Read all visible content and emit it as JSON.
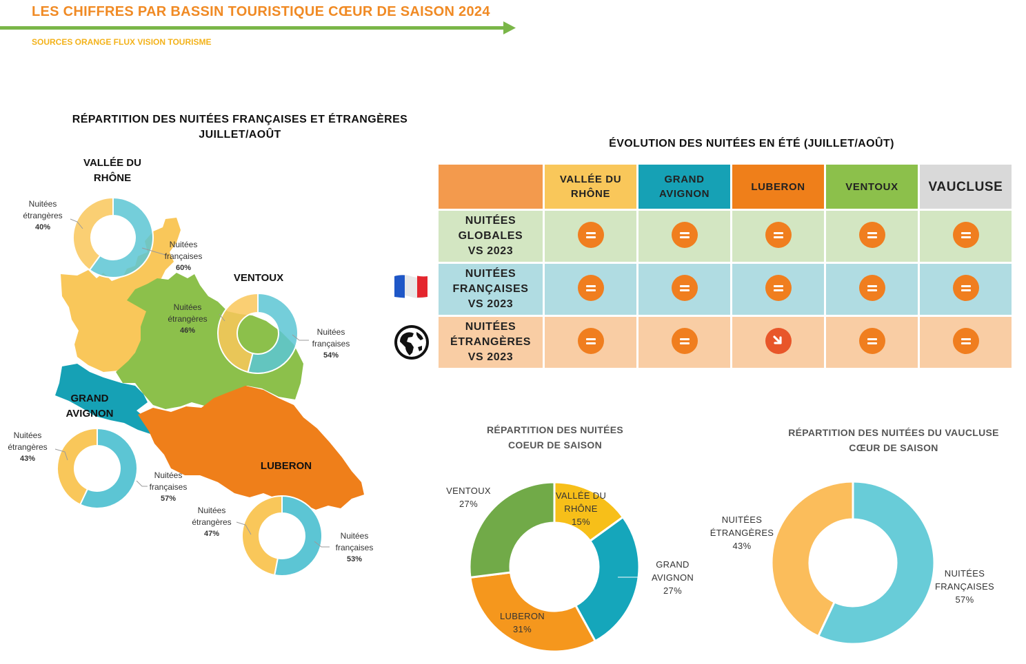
{
  "header": {
    "title": "LES CHIFFRES PAR BASSIN TOURISTIQUE CŒUR DE SAISON 2024",
    "source": "SOURCES ORANGE FLUX VISION TOURISME",
    "accent_color": "#f08a24",
    "line_color": "#7ab648",
    "source_color": "#f3b21a"
  },
  "map_section": {
    "title_line1": "RÉPARTITION DES NUITÉES FRANÇAISES ET ÉTRANGÈRES",
    "title_line2": "JUILLET/AOÛT",
    "regions": [
      {
        "id": "vallee",
        "name_line1": "VALLÉE DU",
        "name_line2": "RHÔNE",
        "color": "#f9c75a",
        "etr_label": [
          "Nuitées",
          "étrangères"
        ],
        "etr_pct": "40%",
        "fr_label": [
          "Nuitées",
          "françaises"
        ],
        "fr_pct": "60%"
      },
      {
        "id": "ventoux",
        "name_line1": "VENTOUX",
        "name_line2": "",
        "color": "#8cc04b",
        "etr_label": [
          "Nuitées",
          "étrangères"
        ],
        "etr_pct": "46%",
        "fr_label": [
          "Nuitées",
          "françaises"
        ],
        "fr_pct": "54%"
      },
      {
        "id": "avignon",
        "name_line1": "GRAND",
        "name_line2": "AVIGNON",
        "color": "#16a1b5",
        "etr_label": [
          "Nuitées",
          "étrangères"
        ],
        "etr_pct": "43%",
        "fr_label": [
          "Nuitées",
          "françaises"
        ],
        "fr_pct": "57%"
      },
      {
        "id": "luberon",
        "name_line1": "LUBERON",
        "name_line2": "",
        "color": "#ef7f1a",
        "etr_label": [
          "Nuitées",
          "étrangères"
        ],
        "etr_pct": "47%",
        "fr_label": [
          "Nuitées",
          "françaises"
        ],
        "fr_pct": "53%"
      }
    ]
  },
  "evolution": {
    "title": "ÉVOLUTION DES NUITÉES EN ÉTÉ (JUILLET/AOÛT)",
    "columns": [
      {
        "label_line1": "VALLÉE DU",
        "label_line2": "RHÔNE",
        "bg": "#f9c75a",
        "fg": "#222222"
      },
      {
        "label_line1": "GRAND",
        "label_line2": "AVIGNON",
        "bg": "#16a1b5",
        "fg": "#222222"
      },
      {
        "label_line1": "LUBERON",
        "label_line2": "",
        "bg": "#ef7f1a",
        "fg": "#222222"
      },
      {
        "label_line1": "VENTOUX",
        "label_line2": "",
        "bg": "#8cc04b",
        "fg": "#222222"
      },
      {
        "label_line1": "VAUCLUSE",
        "label_line2": "",
        "bg": "#d9d9d9",
        "fg": "#222222"
      }
    ],
    "corner_color": "#f39a4d",
    "rows": [
      {
        "label": [
          "NUITÉES",
          "GLOBALES",
          "VS 2023"
        ],
        "bg": "#d3e6c2",
        "icon": "",
        "values": [
          "=",
          "=",
          "=",
          "=",
          "="
        ]
      },
      {
        "label": [
          "NUITÉES",
          "FRANÇAISES",
          "VS 2023"
        ],
        "bg": "#b0dce2",
        "icon": "french-flag-icon",
        "values": [
          "=",
          "=",
          "=",
          "=",
          "="
        ]
      },
      {
        "label": [
          "NUITÉES",
          "ÉTRANGÈRES",
          "VS 2023"
        ],
        "bg": "#f9cda4",
        "icon": "globe-icon",
        "values": [
          "=",
          "=",
          "down",
          "=",
          "="
        ]
      }
    ]
  },
  "chart_data": [
    {
      "type": "pie",
      "title": "",
      "categories": [
        "Nuitées françaises",
        "Nuitées étrangères"
      ],
      "values": [
        60,
        40
      ],
      "colors": [
        "#5cc5d4",
        "#f9c75a"
      ],
      "region": "VALLÉE DU RHÔNE"
    },
    {
      "type": "pie",
      "title": "",
      "categories": [
        "Nuitées françaises",
        "Nuitées étrangères"
      ],
      "values": [
        54,
        46
      ],
      "colors": [
        "#5cc5d4",
        "#f9c75a"
      ],
      "region": "VENTOUX"
    },
    {
      "type": "pie",
      "title": "",
      "categories": [
        "Nuitées françaises",
        "Nuitées étrangères"
      ],
      "values": [
        57,
        43
      ],
      "colors": [
        "#5cc5d4",
        "#f9c75a"
      ],
      "region": "GRAND AVIGNON"
    },
    {
      "type": "pie",
      "title": "",
      "categories": [
        "Nuitées françaises",
        "Nuitées étrangères"
      ],
      "values": [
        53,
        47
      ],
      "colors": [
        "#5cc5d4",
        "#f9c75a"
      ],
      "region": "LUBERON"
    },
    {
      "type": "pie",
      "title": "RÉPARTITION DES NUITÉES COEUR DE SAISON",
      "categories": [
        "VALLÉE DU RHÔNE",
        "GRAND AVIGNON",
        "LUBERON",
        "VENTOUX"
      ],
      "values": [
        15,
        27,
        31,
        27
      ],
      "colors": [
        "#f7bf19",
        "#15a6bb",
        "#f5971d",
        "#71aa48"
      ]
    },
    {
      "type": "pie",
      "title": "RÉPARTITION DES NUITÉES DU VAUCLUSE CŒUR DE SAISON",
      "categories": [
        "NUITÉES FRANÇAISES",
        "NUITÉES ÉTRANGÈRES"
      ],
      "values": [
        57,
        43
      ],
      "colors": [
        "#68ccd8",
        "#fbbd5b"
      ]
    }
  ],
  "pie_labels": {
    "saison": [
      {
        "line1": "VALLÉE DU",
        "line2": "RHÔNE",
        "pct": "15%"
      },
      {
        "line1": "GRAND",
        "line2": "AVIGNON",
        "pct": "27%"
      },
      {
        "line1": "LUBERON",
        "line2": "",
        "pct": "31%"
      },
      {
        "line1": "VENTOUX",
        "line2": "",
        "pct": "27%"
      }
    ],
    "vaucluse": [
      {
        "line1": "NUITÉES",
        "line2": "FRANÇAISES",
        "pct": "57%"
      },
      {
        "line1": "NUITÉES",
        "line2": "ÉTRANGÈRES",
        "pct": "43%"
      }
    ]
  },
  "saison_title": [
    "RÉPARTITION DES NUITÉES",
    "COEUR DE SAISON"
  ],
  "vaucluse_title": [
    "RÉPARTITION DES NUITÉES DU VAUCLUSE",
    "CŒUR DE SAISON"
  ]
}
